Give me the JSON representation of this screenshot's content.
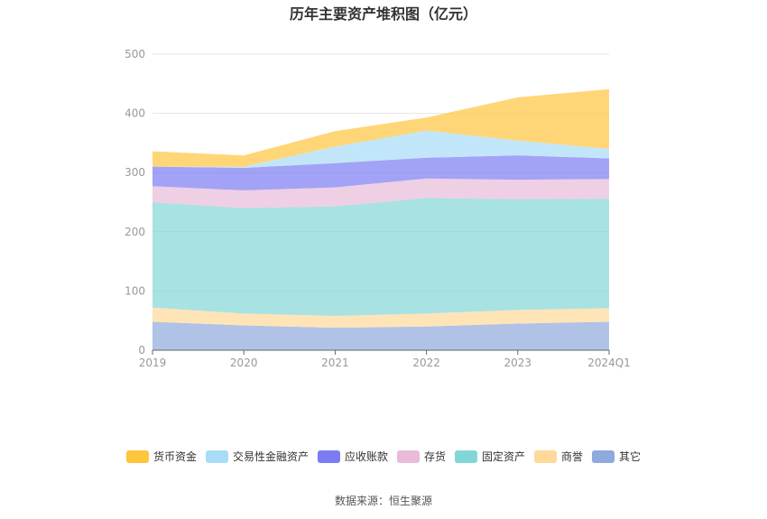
{
  "chart_data": {
    "type": "area",
    "title": "历年主要资产堆积图（亿元）",
    "categories": [
      "2019",
      "2020",
      "2021",
      "2022",
      "2023",
      "2024Q1"
    ],
    "ylim": [
      0,
      500
    ],
    "yticks": [
      0,
      100,
      200,
      300,
      400,
      500
    ],
    "grid": true,
    "legend_position": "bottom",
    "series": [
      {
        "name": "其它",
        "color": "#8faadc",
        "values": [
          48,
          42,
          38,
          40,
          45,
          48
        ]
      },
      {
        "name": "商誉",
        "color": "#ffd99a",
        "values": [
          24,
          20,
          20,
          22,
          23,
          23
        ]
      },
      {
        "name": "固定资产",
        "color": "#83d6d6",
        "values": [
          178,
          178,
          185,
          195,
          187,
          185
        ]
      },
      {
        "name": "存货",
        "color": "#e8bbd8",
        "values": [
          27,
          30,
          32,
          33,
          33,
          33
        ]
      },
      {
        "name": "应收账款",
        "color": "#7b7cf2",
        "values": [
          33,
          38,
          41,
          35,
          41,
          35
        ]
      },
      {
        "name": "交易性金融资产",
        "color": "#a8dcf7",
        "values": [
          0,
          2,
          28,
          46,
          25,
          16
        ]
      },
      {
        "name": "货币资金",
        "color": "#ffc53d",
        "values": [
          26,
          19,
          26,
          22,
          73,
          101
        ]
      }
    ],
    "legend_order": [
      "货币资金",
      "交易性金融资产",
      "应收账款",
      "存货",
      "固定资产",
      "商誉",
      "其它"
    ]
  },
  "source": "数据来源：恒生聚源"
}
